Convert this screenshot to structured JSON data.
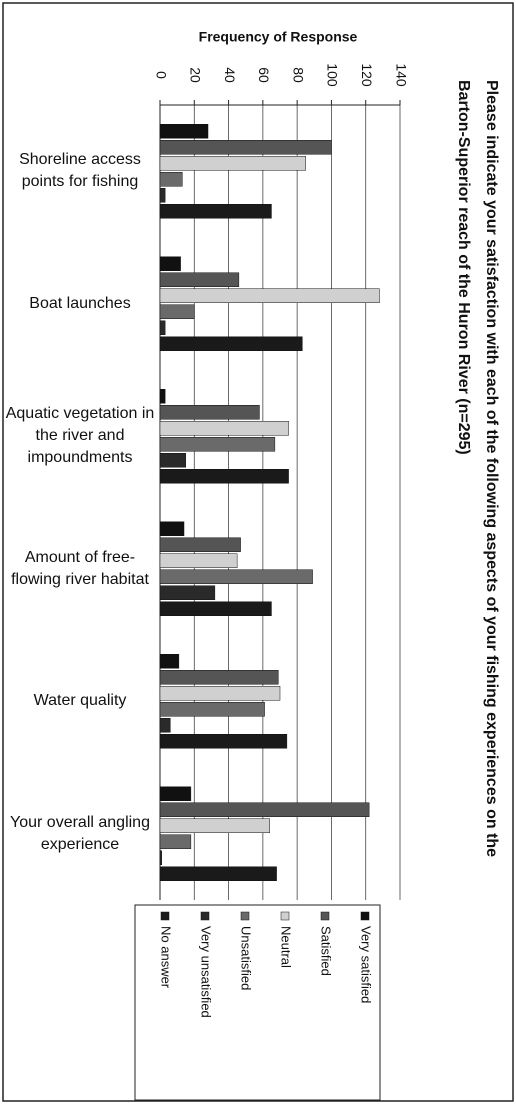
{
  "chart_data": {
    "type": "bar",
    "orientation": "horizontal",
    "title": "Please indicate your satisfaction with each of the following aspects of your fishing experiences on the Barton-Superior reach of the Huron River (n=295)",
    "x_label": "Frequency of Response",
    "categories": [
      "Shoreline access points for fishing",
      "Boat launches",
      "Aquatic vegetation in the river and impoundments",
      "Amount of free-flowing river habitat",
      "Water quality",
      "Your overall angling experience"
    ],
    "series": [
      {
        "name": "Very satisfied",
        "color": "#111111",
        "values": [
          28,
          12,
          3,
          14,
          11,
          18
        ]
      },
      {
        "name": "Satisfied",
        "color": "#555555",
        "values": [
          100,
          46,
          58,
          47,
          69,
          122
        ]
      },
      {
        "name": "Neutral",
        "color": "#d0d0d0",
        "values": [
          85,
          128,
          75,
          45,
          70,
          64
        ]
      },
      {
        "name": "Unsatisfied",
        "color": "#6a6a6a",
        "values": [
          13,
          20,
          67,
          89,
          61,
          18
        ]
      },
      {
        "name": "Very unsatisfied",
        "color": "#2a2a2a",
        "values": [
          3,
          3,
          15,
          32,
          6,
          1
        ]
      },
      {
        "name": "No answer",
        "color": "#1a1a1a",
        "values": [
          65,
          83,
          75,
          65,
          74,
          68
        ]
      }
    ],
    "xlim": [
      0,
      140
    ],
    "xticks": [
      0,
      20,
      40,
      60,
      80,
      100,
      120,
      140
    ],
    "grid": true,
    "legend": "bottom"
  }
}
